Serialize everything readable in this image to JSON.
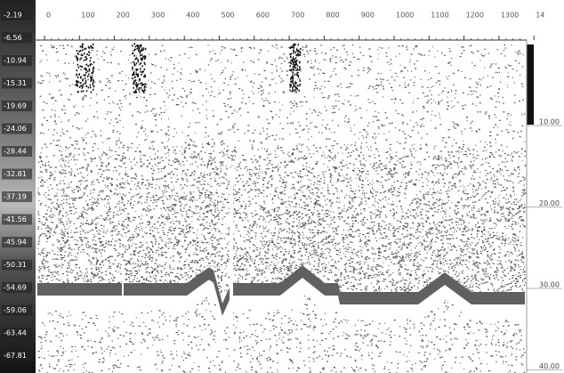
{
  "top_axis": {
    "ticks": [
      "0",
      "100",
      "200",
      "300",
      "400",
      "500",
      "600",
      "700",
      "800",
      "900",
      "1000",
      "1100",
      "1200",
      "1300",
      "14"
    ]
  },
  "color_scale": {
    "labels": [
      "-2.19",
      "-6.56",
      "-10.94",
      "-15.31",
      "-19.69",
      "-24.06",
      "-28.44",
      "-32.81",
      "-37.19",
      "-41.56",
      "-45.94",
      "-50.31",
      "-54.69",
      "-59.06",
      "-63.44",
      "-67.81"
    ]
  },
  "depth_axis": {
    "labels": [
      "10.00",
      "20.00",
      "30.00",
      "40.00"
    ]
  }
}
